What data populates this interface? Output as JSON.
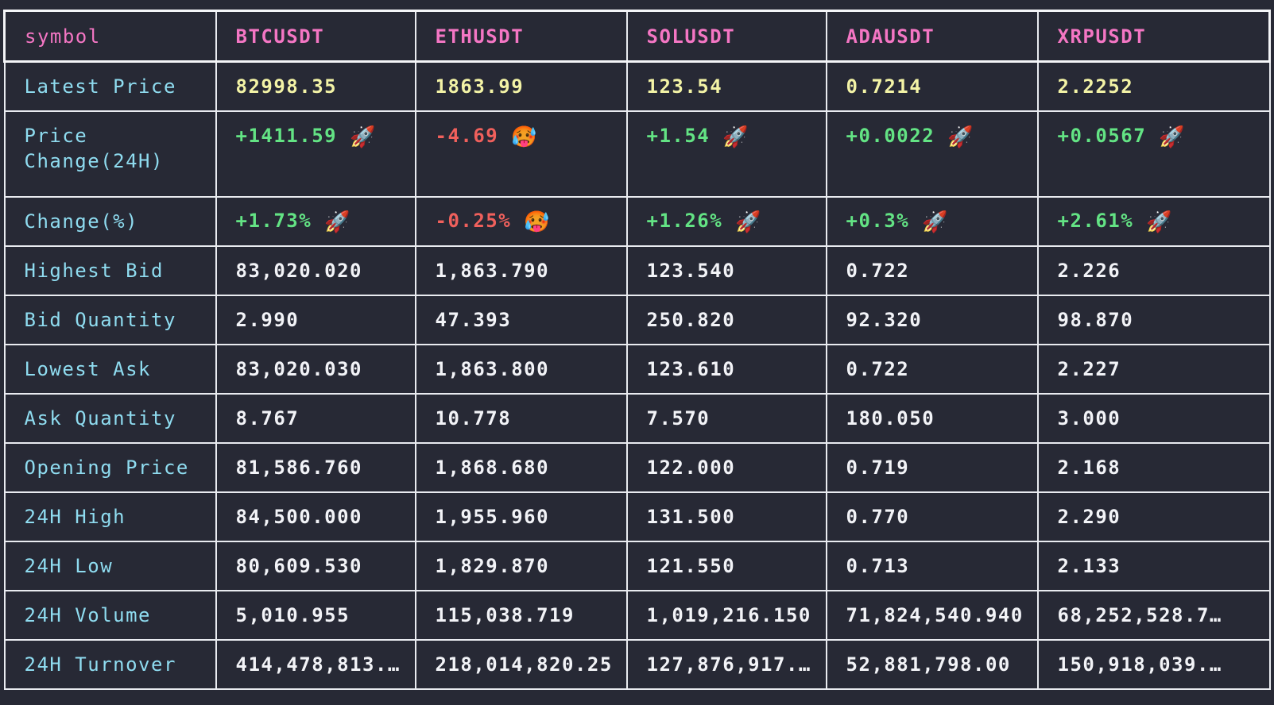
{
  "table": {
    "header": [
      "symbol",
      "BTCUSDT",
      "ETHUSDT",
      "SOLUSDT",
      "ADAUSDT",
      "XRPUSDT"
    ],
    "rows": [
      {
        "label": "Latest Price",
        "style": "price",
        "cells": [
          "82998.35",
          "1863.99",
          "123.54",
          "0.7214",
          "2.2252"
        ]
      },
      {
        "label": "Price Change(24H)",
        "style": "change",
        "cells": [
          "+1411.59",
          "-4.69",
          "+1.54",
          "+0.0022",
          "+0.0567"
        ],
        "icons": [
          "rocket-icon",
          "hot-face-icon",
          "rocket-icon",
          "rocket-icon",
          "rocket-icon"
        ]
      },
      {
        "label": "Change(%)",
        "style": "change",
        "cells": [
          "+1.73%",
          "-0.25%",
          "+1.26%",
          "+0.3%",
          "+2.61%"
        ],
        "icons": [
          "rocket-icon",
          "hot-face-icon",
          "rocket-icon",
          "rocket-icon",
          "rocket-icon"
        ]
      },
      {
        "label": "Highest Bid",
        "cells": [
          "83,020.020",
          "1,863.790",
          "123.540",
          "0.722",
          "2.226"
        ]
      },
      {
        "label": "Bid Quantity",
        "cells": [
          "2.990",
          "47.393",
          "250.820",
          "92.320",
          "98.870"
        ]
      },
      {
        "label": "Lowest Ask",
        "cells": [
          "83,020.030",
          "1,863.800",
          "123.610",
          "0.722",
          "2.227"
        ]
      },
      {
        "label": "Ask Quantity",
        "cells": [
          "8.767",
          "10.778",
          "7.570",
          "180.050",
          "3.000"
        ]
      },
      {
        "label": "Opening Price",
        "cells": [
          "81,586.760",
          "1,868.680",
          "122.000",
          "0.719",
          "2.168"
        ]
      },
      {
        "label": "24H High",
        "cells": [
          "84,500.000",
          "1,955.960",
          "131.500",
          "0.770",
          "2.290"
        ]
      },
      {
        "label": "24H Low",
        "cells": [
          "80,609.530",
          "1,829.870",
          "121.550",
          "0.713",
          "2.133"
        ]
      },
      {
        "label": "24H Volume",
        "cells": [
          "5,010.955",
          "115,038.719",
          "1,019,216.150",
          "71,824,540.940",
          "68,252,528.7…"
        ]
      },
      {
        "label": "24H Turnover",
        "cells": [
          "414,478,813.…",
          "218,014,820.25",
          "127,876,917.…",
          "52,881,798.00",
          "150,918,039.…"
        ]
      }
    ]
  },
  "colors": {
    "background": "#272935",
    "header_text": "#f476c4",
    "label_text": "#8fdcf0",
    "latest_price": "#f3f3a6",
    "positive": "#63e384",
    "negative": "#f0605c",
    "value_text": "#f2f3f7",
    "border": "#e9ebf0"
  }
}
